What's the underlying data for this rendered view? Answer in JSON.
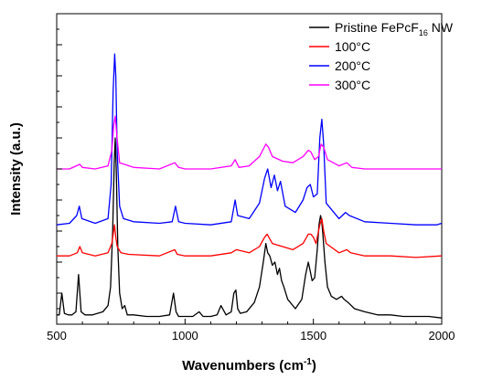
{
  "chart_data": {
    "type": "line",
    "xlabel": "Wavenumbers (cm",
    "xlabel_sup": "-1",
    "xlabel_end": ")",
    "ylabel": "Intensity (a.u.)",
    "xlim": [
      500,
      2000
    ],
    "ylim": [
      0,
      10
    ],
    "x_ticks": [
      "500",
      "1000",
      "1500",
      "2000"
    ],
    "y_ticks_labeled": false,
    "grid": false,
    "legend_position": "top-right",
    "series": [
      {
        "name": "Pristine FePcF",
        "name_sub": "16",
        "name_suffix": " NW",
        "color": "#000000",
        "baseline": 0.2,
        "x": [
          500,
          510,
          520,
          530,
          545,
          560,
          575,
          585,
          595,
          610,
          640,
          680,
          700,
          710,
          718,
          724,
          728,
          732,
          738,
          745,
          755,
          765,
          775,
          800,
          850,
          900,
          940,
          955,
          965,
          975,
          990,
          1030,
          1055,
          1070,
          1100,
          1125,
          1140,
          1160,
          1180,
          1190,
          1198,
          1205,
          1215,
          1240,
          1270,
          1290,
          1305,
          1315,
          1322,
          1330,
          1340,
          1350,
          1360,
          1368,
          1376,
          1385,
          1400,
          1430,
          1455,
          1470,
          1480,
          1488,
          1495,
          1505,
          1515,
          1522,
          1528,
          1533,
          1538,
          1545,
          1555,
          1570,
          1590,
          1610,
          1620,
          1635,
          1660,
          1700,
          1750,
          1800,
          1850,
          1900,
          1950,
          2000
        ],
        "y": [
          0.3,
          0.3,
          1.0,
          0.35,
          0.3,
          0.3,
          0.4,
          1.6,
          0.4,
          0.3,
          0.3,
          0.4,
          0.6,
          1.2,
          3.0,
          5.2,
          6.0,
          5.0,
          2.5,
          1.0,
          0.5,
          0.6,
          0.3,
          0.3,
          0.25,
          0.25,
          0.3,
          1.0,
          0.4,
          0.25,
          0.25,
          0.25,
          0.4,
          0.25,
          0.25,
          0.3,
          0.6,
          0.3,
          0.4,
          1.0,
          1.1,
          0.5,
          0.35,
          0.4,
          0.7,
          1.2,
          2.0,
          2.6,
          2.3,
          2.2,
          1.9,
          2.0,
          1.6,
          1.8,
          1.4,
          1.2,
          0.8,
          0.5,
          0.8,
          1.6,
          2.0,
          1.7,
          1.4,
          1.5,
          2.4,
          3.2,
          3.5,
          3.3,
          2.8,
          2.0,
          1.2,
          0.9,
          0.8,
          0.9,
          0.8,
          0.7,
          0.5,
          0.4,
          0.3,
          0.3,
          0.25,
          0.25,
          0.25,
          0.2
        ]
      },
      {
        "name": "100°C",
        "color": "#ff0000",
        "baseline": 2.2,
        "x": [
          500,
          550,
          580,
          590,
          600,
          650,
          700,
          715,
          725,
          730,
          736,
          750,
          780,
          900,
          960,
          970,
          1000,
          1100,
          1180,
          1200,
          1250,
          1290,
          1310,
          1320,
          1340,
          1380,
          1420,
          1460,
          1480,
          1490,
          1500,
          1510,
          1525,
          1533,
          1540,
          1550,
          1600,
          1630,
          1645,
          1700,
          1800,
          1900,
          2000
        ],
        "y": [
          2.2,
          2.2,
          2.3,
          2.5,
          2.3,
          2.2,
          2.3,
          2.6,
          3.2,
          2.8,
          2.5,
          2.3,
          2.25,
          2.2,
          2.4,
          2.25,
          2.2,
          2.2,
          2.3,
          2.4,
          2.3,
          2.5,
          2.8,
          2.9,
          2.6,
          2.5,
          2.4,
          2.6,
          2.9,
          2.9,
          2.8,
          2.6,
          3.2,
          3.4,
          3.0,
          2.6,
          2.3,
          2.4,
          2.3,
          2.2,
          2.2,
          2.15,
          2.2
        ]
      },
      {
        "name": "200°C",
        "color": "#0000ff",
        "baseline": 3.2,
        "x": [
          500,
          550,
          578,
          588,
          598,
          650,
          700,
          712,
          720,
          726,
          730,
          736,
          745,
          760,
          800,
          900,
          950,
          963,
          975,
          1000,
          1100,
          1180,
          1195,
          1205,
          1250,
          1290,
          1310,
          1322,
          1335,
          1348,
          1360,
          1372,
          1390,
          1430,
          1460,
          1475,
          1488,
          1500,
          1515,
          1525,
          1533,
          1540,
          1550,
          1600,
          1625,
          1640,
          1700,
          1800,
          1900,
          1980,
          2000
        ],
        "y": [
          3.2,
          3.25,
          3.5,
          3.8,
          3.4,
          3.25,
          3.4,
          4.5,
          7.5,
          8.7,
          8.0,
          5.5,
          3.8,
          3.4,
          3.3,
          3.25,
          3.3,
          3.8,
          3.3,
          3.25,
          3.2,
          3.3,
          4.0,
          3.5,
          3.4,
          3.9,
          4.7,
          5.0,
          4.4,
          4.8,
          4.3,
          4.6,
          3.8,
          3.6,
          4.0,
          4.4,
          4.5,
          4.1,
          4.2,
          6.0,
          6.6,
          5.8,
          3.9,
          3.4,
          3.6,
          3.5,
          3.3,
          3.25,
          3.2,
          3.2,
          3.25
        ]
      },
      {
        "name": "300°C",
        "color": "#ff00ff",
        "baseline": 5.0,
        "x": [
          500,
          550,
          590,
          600,
          650,
          700,
          715,
          722,
          728,
          735,
          745,
          800,
          900,
          960,
          975,
          1000,
          1100,
          1180,
          1195,
          1210,
          1250,
          1290,
          1315,
          1325,
          1340,
          1380,
          1420,
          1460,
          1480,
          1490,
          1505,
          1520,
          1530,
          1540,
          1555,
          1600,
          1630,
          1650,
          1700,
          1800,
          1900,
          2000
        ],
        "y": [
          5.0,
          5.0,
          5.15,
          5.05,
          5.0,
          5.1,
          5.6,
          6.4,
          6.7,
          6.0,
          5.2,
          5.05,
          5.0,
          5.2,
          5.05,
          5.0,
          5.0,
          5.1,
          5.3,
          5.05,
          5.1,
          5.4,
          5.8,
          5.7,
          5.4,
          5.25,
          5.2,
          5.4,
          5.6,
          5.55,
          5.3,
          5.4,
          5.8,
          5.7,
          5.3,
          5.1,
          5.2,
          5.05,
          5.0,
          5.0,
          5.0,
          5.0
        ]
      }
    ]
  }
}
